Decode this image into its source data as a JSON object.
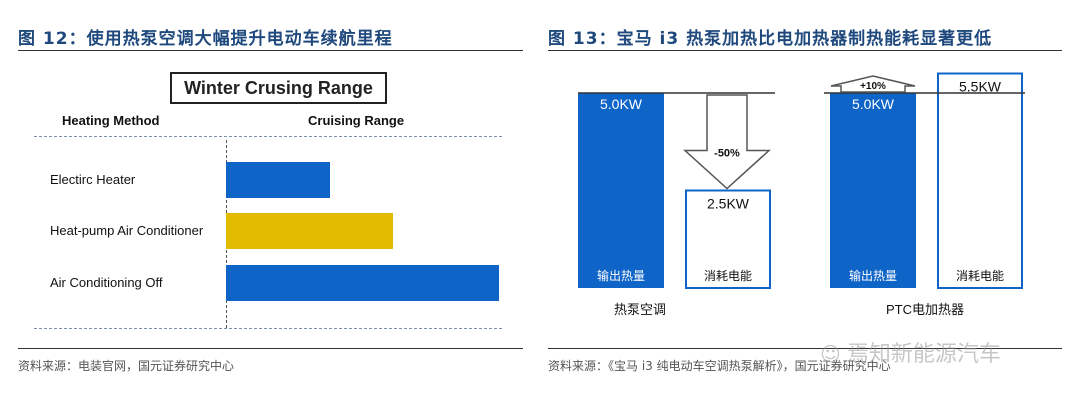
{
  "left": {
    "figure_title": "图 12：使用热泵空调大幅提升电动车续航里程",
    "source": "资料来源：电装官网，国元证券研究中心",
    "chart_title": "Winter Crusing Range",
    "col_heating": "Heating Method",
    "col_range": "Cruising Range"
  },
  "right": {
    "figure_title": "图 13：宝马 i3 热泵加热比电加热器制热能耗显著更低",
    "source": "资料来源：《宝马 i3 纯电动车空调热泵解析》，国元证券研究中心"
  },
  "watermark": "焉知新能源汽车",
  "chart_data": [
    {
      "type": "bar",
      "orientation": "horizontal",
      "title": "Winter Crusing Range",
      "categories": [
        "Electirc Heater",
        "Heat-pump Air Conditioner",
        "Air Conditioning Off"
      ],
      "values": [
        38,
        61,
        100
      ],
      "colors": [
        "#0f64c8",
        "#e3bb00",
        "#0f64c8"
      ],
      "xlabel": "Cruising Range",
      "ylabel": "Heating Method",
      "value_scale": "relative",
      "grid": false,
      "legend": "none"
    },
    {
      "type": "bar",
      "title": "",
      "groups": [
        {
          "name": "热泵空调",
          "bars": [
            {
              "label": "输出热量",
              "value": 5.0,
              "text": "5.0KW",
              "style": "filled"
            },
            {
              "label": "消耗电能",
              "value": 2.5,
              "text": "2.5KW",
              "style": "outline"
            }
          ],
          "annotation": "-50%"
        },
        {
          "name": "PTC电加热器",
          "bars": [
            {
              "label": "输出热量",
              "value": 5.0,
              "text": "5.0KW",
              "style": "filled"
            },
            {
              "label": "消耗电能",
              "value": 5.5,
              "text": "5.5KW",
              "style": "outline"
            }
          ],
          "annotation": "+10%"
        }
      ],
      "unit": "KW",
      "colors": {
        "filled": "#0f64c8",
        "outline": "#0f64c8",
        "arrow": "#555555"
      }
    }
  ]
}
